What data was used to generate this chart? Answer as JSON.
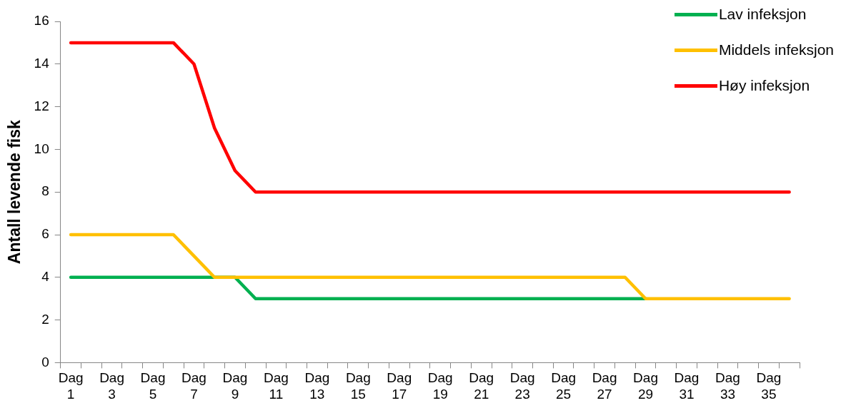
{
  "chart_data": {
    "type": "line",
    "ylabel": "Antall levende fisk",
    "categories": [
      "Dag 1",
      null,
      "Dag 3",
      null,
      "Dag 5",
      null,
      "Dag 7",
      null,
      "Dag 9",
      null,
      "Dag 11",
      null,
      "Dag 13",
      null,
      "Dag 15",
      null,
      "Dag 17",
      null,
      "Dag 19",
      null,
      "Dag 21",
      null,
      "Dag 23",
      null,
      "Dag 25",
      null,
      "Dag 27",
      null,
      "Dag 29",
      null,
      "Dag 31",
      null,
      "Dag 33",
      null,
      "Dag 35",
      null
    ],
    "series": [
      {
        "name": "Lav infeksjon",
        "color": "#00b050",
        "values": [
          4,
          4,
          4,
          4,
          4,
          4,
          4,
          4,
          4,
          3,
          3,
          3,
          3,
          3,
          3,
          3,
          3,
          3,
          3,
          3,
          3,
          3,
          3,
          3,
          3,
          3,
          3,
          3,
          3,
          null,
          null,
          null,
          null,
          null,
          null,
          null
        ]
      },
      {
        "name": "Middels infeksjon",
        "color": "#ffc000",
        "values": [
          6,
          6,
          6,
          6,
          6,
          6,
          5,
          4,
          4,
          4,
          4,
          4,
          4,
          4,
          4,
          4,
          4,
          4,
          4,
          4,
          4,
          4,
          4,
          4,
          4,
          4,
          4,
          4,
          3,
          3,
          3,
          3,
          3,
          3,
          3,
          3
        ]
      },
      {
        "name": "Høy infeksjon",
        "color": "#ff0000",
        "values": [
          15,
          15,
          15,
          15,
          15,
          15,
          14,
          11,
          9,
          8,
          8,
          8,
          8,
          8,
          8,
          8,
          8,
          8,
          8,
          8,
          8,
          8,
          8,
          8,
          8,
          8,
          8,
          8,
          8,
          8,
          8,
          8,
          8,
          8,
          8,
          8
        ]
      }
    ],
    "ylim": [
      0,
      16
    ],
    "yticks": [
      0,
      2,
      4,
      6,
      8,
      10,
      12,
      14,
      16
    ],
    "grid": false,
    "legend": "top right",
    "marker": "none",
    "line_style": "solid"
  }
}
